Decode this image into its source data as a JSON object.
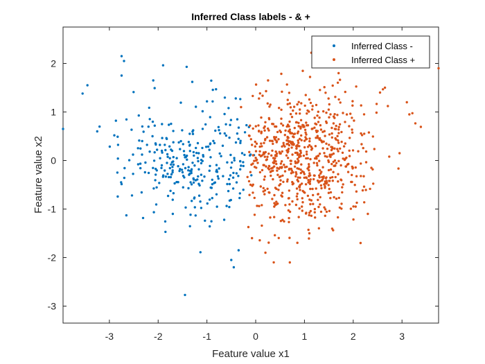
{
  "chart_data": {
    "type": "scatter",
    "title": "Inferred Class labels - & +",
    "xlabel": "Feature value x1",
    "ylabel": "Feature value x2",
    "xlim": [
      -3.95,
      3.75
    ],
    "ylim": [
      -3.35,
      2.75
    ],
    "xticks": [
      -3,
      -2,
      -1,
      0,
      1,
      2,
      3
    ],
    "yticks": [
      -3,
      -2,
      -1,
      0,
      1,
      2
    ],
    "grid": false,
    "legend_position": "top-right",
    "series": [
      {
        "name": "Inferred Class -",
        "color": "#0072BD",
        "seed": 7,
        "n": 300,
        "center": [
          -1.25,
          0.0
        ],
        "spread": [
          0.75,
          0.6
        ],
        "x_range": [
          -3.95,
          0.0
        ],
        "outliers": [
          [
            -2.75,
            2.15
          ],
          [
            -2.7,
            2.05
          ],
          [
            -2.75,
            1.75
          ],
          [
            -3.45,
            1.55
          ],
          [
            -3.55,
            1.38
          ],
          [
            -2.1,
            1.65
          ],
          [
            -1.3,
            1.62
          ],
          [
            -3.95,
            0.65
          ],
          [
            -3.25,
            0.6
          ],
          [
            -1.45,
            -2.77
          ],
          [
            -0.45,
            -2.2
          ],
          [
            -0.5,
            -2.05
          ],
          [
            -1.85,
            -1.47
          ],
          [
            -1.7,
            -1.1
          ],
          [
            -0.35,
            -1.85
          ]
        ]
      },
      {
        "name": "Inferred Class +",
        "color": "#D95319",
        "seed": 19,
        "n": 700,
        "center": [
          0.95,
          0.1
        ],
        "spread": [
          0.7,
          0.72
        ],
        "x_range": [
          -0.2,
          3.8
        ],
        "outliers": [
          [
            3.75,
            1.9
          ],
          [
            3.1,
            1.2
          ],
          [
            3.15,
            0.95
          ],
          [
            2.95,
            0.15
          ],
          [
            2.65,
            1.5
          ],
          [
            2.55,
            1.4
          ],
          [
            1.7,
            1.8
          ],
          [
            2.15,
            -1.7
          ],
          [
            0.7,
            -2.1
          ],
          [
            0.2,
            -1.9
          ],
          [
            2.3,
            -1.1
          ],
          [
            1.1,
            -1.5
          ],
          [
            0.3,
            1.15
          ],
          [
            -0.3,
            1.1
          ],
          [
            2.05,
            -0.95
          ]
        ]
      }
    ]
  }
}
